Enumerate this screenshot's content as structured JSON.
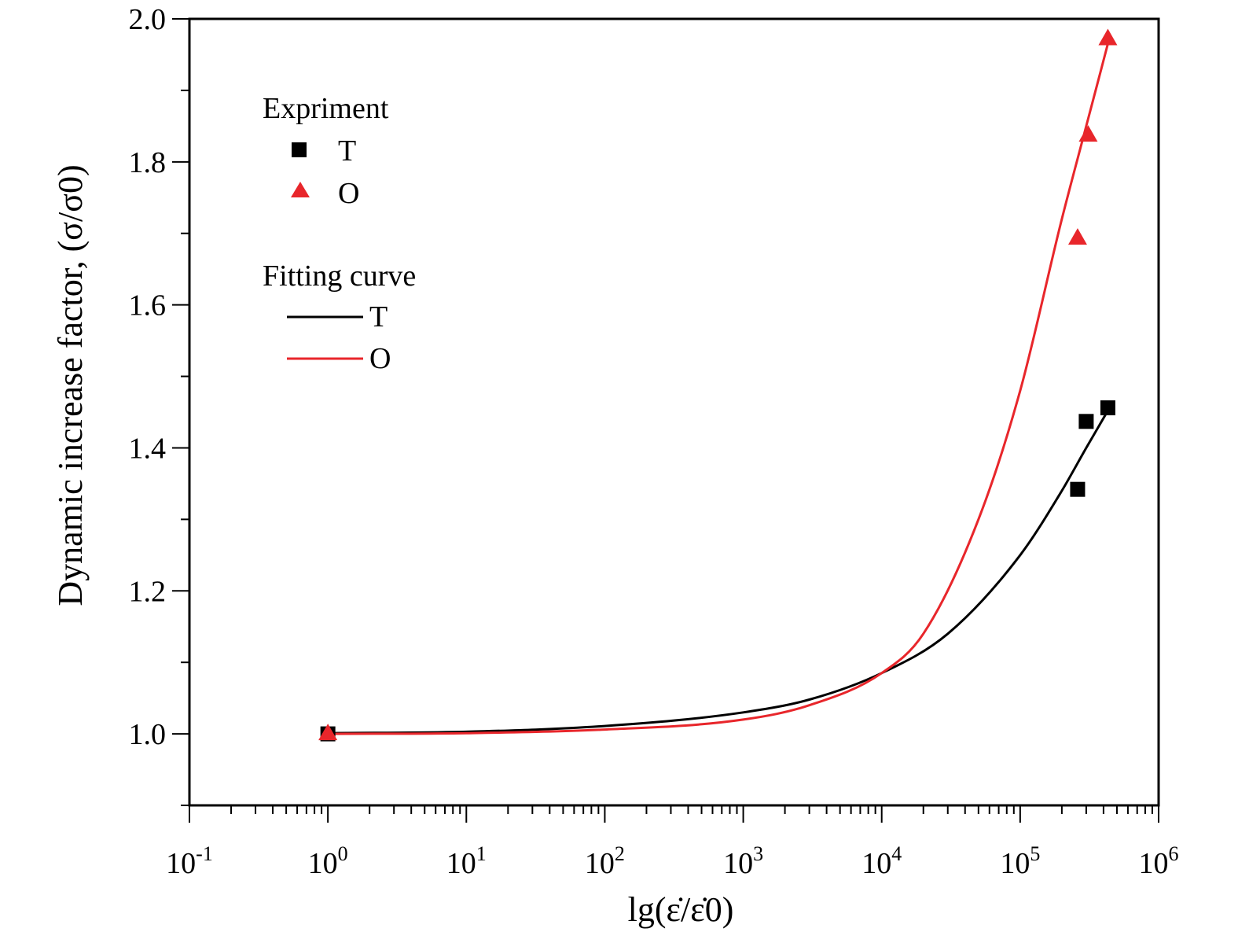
{
  "chart_data": {
    "type": "scatter",
    "x_scale": "log",
    "xlim": [
      0.1,
      1000000
    ],
    "ylim": [
      0.9,
      2.0
    ],
    "grid": false,
    "x_tick_labels": [
      {
        "base": "10",
        "exp": "-1"
      },
      {
        "base": "10",
        "exp": "0"
      },
      {
        "base": "10",
        "exp": "1"
      },
      {
        "base": "10",
        "exp": "2"
      },
      {
        "base": "10",
        "exp": "3"
      },
      {
        "base": "10",
        "exp": "4"
      },
      {
        "base": "10",
        "exp": "5"
      },
      {
        "base": "10",
        "exp": "6"
      }
    ],
    "y_tick_labels": [
      "1.0",
      "1.2",
      "1.4",
      "1.6",
      "1.8",
      "2.0"
    ],
    "xlabel": "lg(ε̇/ε̇0)",
    "ylabel": "Dynamic increase factor, (σ/σ0)",
    "legend": {
      "position": "top-left",
      "experiment_title": "Expriment",
      "fit_title": "Fitting curve",
      "entries": [
        "T",
        "O"
      ]
    },
    "series": [
      {
        "name": "T",
        "kind": "experiment",
        "marker": "square",
        "color": "#000000",
        "x": [
          1,
          260000,
          300000,
          430000
        ],
        "y": [
          1.0,
          1.342,
          1.437,
          1.456
        ]
      },
      {
        "name": "O",
        "kind": "experiment",
        "marker": "triangle",
        "color": "#e8262b",
        "x": [
          1,
          260000,
          310000,
          430000
        ],
        "y": [
          1.0,
          1.693,
          1.837,
          1.972
        ]
      },
      {
        "name": "T",
        "kind": "fit",
        "color": "#000000",
        "x": [
          1,
          10,
          100,
          1000,
          3000,
          10000,
          30000,
          100000,
          200000,
          300000,
          430000
        ],
        "y": [
          1.001,
          1.003,
          1.011,
          1.03,
          1.048,
          1.085,
          1.14,
          1.25,
          1.34,
          1.4,
          1.452
        ]
      },
      {
        "name": "O",
        "kind": "fit",
        "color": "#e8262b",
        "x": [
          1,
          10,
          100,
          1000,
          3000,
          10000,
          20000,
          50000,
          100000,
          200000,
          300000,
          430000
        ],
        "y": [
          1.0,
          1.001,
          1.006,
          1.02,
          1.04,
          1.085,
          1.14,
          1.3,
          1.48,
          1.72,
          1.85,
          1.965
        ]
      }
    ]
  }
}
